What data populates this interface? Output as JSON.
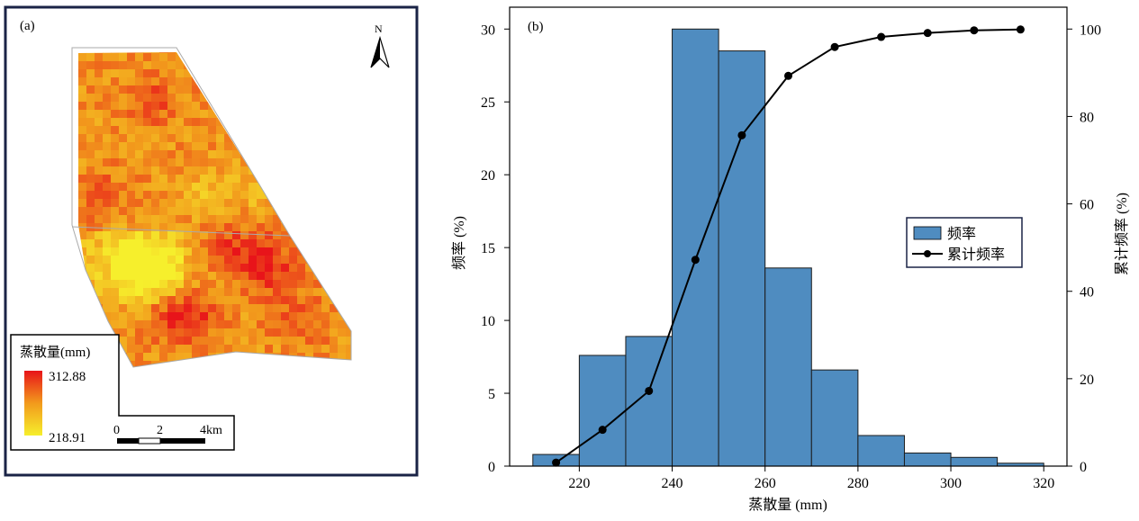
{
  "map_panel": {
    "label": "(a)",
    "north_label": "N",
    "legend": {
      "title": "蒸散量(mm)",
      "max_value": "312.88",
      "min_value": "218.91",
      "color_high": "#e8141a",
      "color_mid": "#f29a1c",
      "color_low": "#f6ef2c"
    },
    "scale_bar": {
      "labels": [
        "0",
        "2",
        "4km"
      ]
    },
    "frame_color": "#1a2346"
  },
  "chart_data": {
    "type": "bar",
    "panel_label": "(b)",
    "bins": [
      [
        210,
        220
      ],
      [
        220,
        230
      ],
      [
        230,
        240
      ],
      [
        240,
        250
      ],
      [
        250,
        260
      ],
      [
        260,
        270
      ],
      [
        270,
        280
      ],
      [
        280,
        290
      ],
      [
        290,
        300
      ],
      [
        300,
        310
      ],
      [
        310,
        320
      ]
    ],
    "frequency": [
      0.8,
      7.6,
      8.9,
      30.0,
      28.5,
      13.6,
      6.6,
      2.1,
      0.9,
      0.6,
      0.2
    ],
    "cumulative": {
      "x": [
        215,
        225,
        235,
        245,
        255,
        265,
        275,
        285,
        295,
        305,
        315
      ],
      "y": [
        0.8,
        8.3,
        17.2,
        47.2,
        75.7,
        89.3,
        95.9,
        98.2,
        99.1,
        99.7,
        99.9
      ]
    },
    "xlabel": "蒸散量  (mm)",
    "ylabel_left": "频率 (%)",
    "ylabel_right": "累计频率  (%)",
    "xlim": [
      205,
      325
    ],
    "ylim_left": [
      0,
      31.5
    ],
    "ylim_right": [
      0,
      105
    ],
    "xticks": [
      "220",
      "240",
      "260",
      "280",
      "300",
      "320"
    ],
    "yticks_left": [
      "0",
      "5",
      "10",
      "15",
      "20",
      "25",
      "30"
    ],
    "yticks_right": [
      "0",
      "20",
      "40",
      "60",
      "80",
      "100"
    ],
    "legend": [
      "频率",
      "累计频率"
    ],
    "legend_position": "center-right",
    "bar_color": "#4f8cc0",
    "line_color": "#000000"
  }
}
